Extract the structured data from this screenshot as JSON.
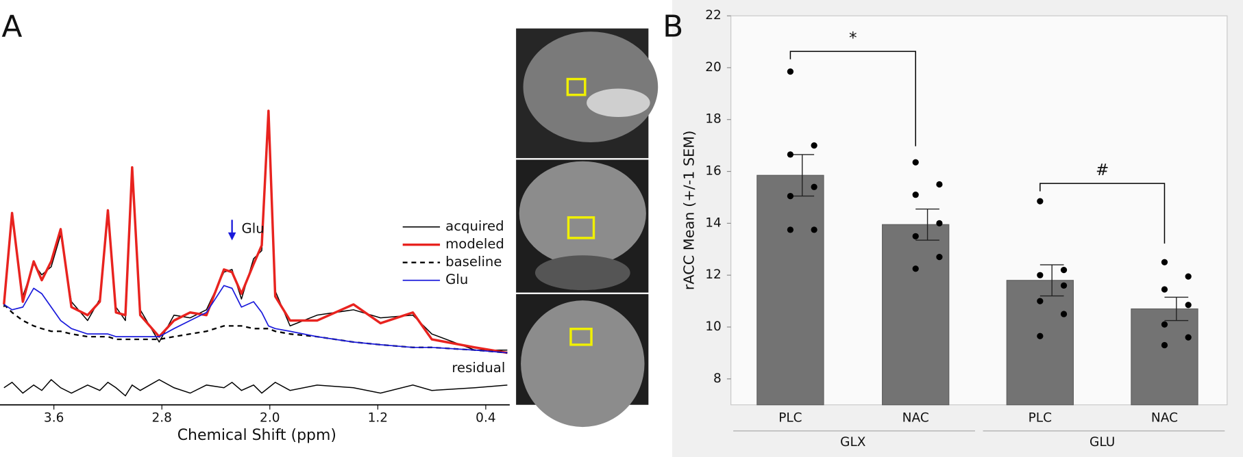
{
  "chart_data": [
    {
      "type": "line",
      "panel_label": "A",
      "xlabel": "Chemical Shift (ppm)",
      "x": [
        3.97,
        3.91,
        3.83,
        3.75,
        3.69,
        3.62,
        3.55,
        3.47,
        3.35,
        3.26,
        3.2,
        3.14,
        3.07,
        3.02,
        2.96,
        2.82,
        2.71,
        2.59,
        2.47,
        2.34,
        2.28,
        2.21,
        2.12,
        2.06,
        2.01,
        1.96,
        1.85,
        1.65,
        1.38,
        1.18,
        0.94,
        0.8,
        0.48,
        0.24
      ],
      "xlim": [
        3.97,
        0.24
      ],
      "xticks": [
        3.6,
        2.8,
        {
          "value": 2.0,
          "label": "2.0"
        },
        1.2,
        0.4
      ],
      "ylim": [
        -10,
        100
      ],
      "legend": "right",
      "series": [
        {
          "name": "acquired",
          "color": "#000000",
          "width": 1.3,
          "dash": false,
          "values": [
            24,
            57,
            28,
            40,
            36,
            39,
            51,
            26,
            19,
            27,
            58,
            24,
            19,
            74,
            23,
            11,
            21,
            20,
            23,
            37,
            38,
            27,
            42,
            45,
            96,
            30,
            17,
            21,
            23,
            20,
            21,
            14,
            8,
            8
          ]
        },
        {
          "name": "modeled",
          "color": "#e8231f",
          "width": 3,
          "dash": false,
          "values": [
            25,
            59,
            26,
            41,
            34,
            41,
            53,
            24,
            21,
            26,
            60,
            22,
            21,
            76,
            21,
            13,
            19,
            22,
            21,
            38,
            37,
            29,
            40,
            47,
            97,
            28,
            19,
            19,
            25,
            18,
            22,
            12,
            9,
            7
          ]
        },
        {
          "name": "baseline",
          "color": "#000000",
          "width": 2,
          "dash": true,
          "values": [
            25,
            22,
            19,
            17,
            16,
            15,
            15,
            14,
            13,
            13,
            13,
            12,
            12,
            12,
            12,
            12,
            13,
            14,
            15,
            17,
            17,
            17,
            16,
            16,
            16,
            15,
            14,
            13,
            11,
            10,
            9,
            9,
            8,
            7
          ]
        },
        {
          "name": "Glu",
          "color": "#1a1adb",
          "width": 1.5,
          "dash": false,
          "values": [
            25,
            23,
            24,
            31,
            29,
            24,
            19,
            16,
            14,
            14,
            14,
            13,
            13,
            13,
            13,
            13,
            16,
            19,
            22,
            32,
            31,
            24,
            26,
            22,
            17,
            16,
            15,
            13,
            11,
            10,
            9,
            9,
            8,
            7
          ]
        }
      ],
      "residual": {
        "label": "residual",
        "color": "#000000",
        "values": [
          -6,
          -4,
          -8,
          -5,
          -7,
          -3,
          -6,
          -8,
          -5,
          -7,
          -4,
          -6,
          -9,
          -5,
          -7,
          -3,
          -6,
          -8,
          -5,
          -6,
          -4,
          -7,
          -5,
          -8,
          -6,
          -4,
          -7,
          -5,
          -6,
          -8,
          -5,
          -7,
          -6,
          -5
        ]
      },
      "annotation": {
        "text": "Glu",
        "x": 2.28,
        "color": "#1a1adb"
      }
    },
    {
      "type": "bar",
      "panel_label": "B",
      "ylabel": "rACC Mean (+/-1 SEM)",
      "categories": [
        "PLC",
        "NAC",
        "PLC",
        "NAC"
      ],
      "groups": [
        "GLX",
        "GLU"
      ],
      "values": [
        15.85,
        13.95,
        11.8,
        10.7
      ],
      "errors": [
        0.8,
        0.6,
        0.6,
        0.45
      ],
      "points": [
        [
          19.85,
          17.0,
          16.65,
          15.4,
          15.05,
          13.75,
          13.75
        ],
        [
          16.35,
          15.5,
          15.1,
          14.0,
          13.5,
          12.7,
          12.25
        ],
        [
          14.85,
          12.2,
          12.0,
          11.6,
          11.0,
          10.5,
          9.65
        ],
        [
          12.5,
          11.95,
          11.45,
          10.85,
          10.1,
          9.6,
          9.3
        ]
      ],
      "color": "#737373",
      "ylim": [
        7,
        22
      ],
      "yticks": [
        8,
        10,
        12,
        14,
        16,
        18,
        20,
        22
      ],
      "annotations": [
        "*",
        "#"
      ]
    }
  ]
}
